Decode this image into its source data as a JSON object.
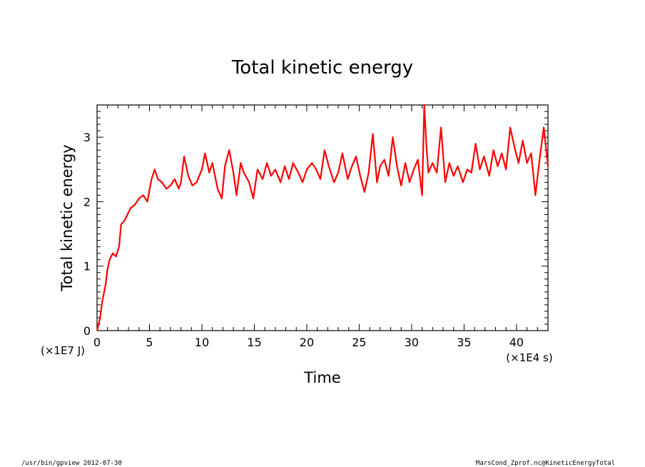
{
  "chart_data": {
    "type": "line",
    "title": "Total kinetic energy",
    "xlabel": "Time",
    "ylabel": "Total kinetic energy",
    "x_unit": "(×1E4 s)",
    "y_unit": "(×1E7 J)",
    "xlim": [
      0,
      43
    ],
    "ylim": [
      0,
      3.5
    ],
    "xticks": [
      0,
      5,
      10,
      15,
      20,
      25,
      30,
      35,
      40
    ],
    "xtick_labels": [
      "0",
      "5",
      "10",
      "15",
      "20",
      "25",
      "30",
      "35",
      "40"
    ],
    "yticks": [
      0,
      1,
      2,
      3
    ],
    "ytick_labels": [
      "0",
      "1",
      "2",
      "3"
    ],
    "grid": false,
    "line_color": "#ff0000",
    "series": [
      {
        "x": [
          0,
          0.3,
          0.5,
          0.8,
          1.0,
          1.2,
          1.5,
          1.8,
          2.1,
          2.3,
          2.6,
          2.9,
          3.2,
          3.6,
          4.0,
          4.4,
          4.8,
          5.2,
          5.5,
          5.8,
          6.2,
          6.6,
          7.0,
          7.4,
          7.8,
          8.0,
          8.3,
          8.7,
          9.1,
          9.5,
          10.0,
          10.3,
          10.7,
          11.0,
          11.5,
          11.9,
          12.2,
          12.6,
          13.0,
          13.3,
          13.7,
          14.0,
          14.5,
          14.9,
          15.3,
          15.8,
          16.2,
          16.6,
          17.0,
          17.5,
          17.9,
          18.3,
          18.7,
          19.2,
          19.6,
          20.0,
          20.5,
          20.9,
          21.3,
          21.7,
          22.1,
          22.6,
          23.0,
          23.4,
          23.9,
          24.3,
          24.7,
          25.1,
          25.5,
          25.9,
          26.3,
          26.7,
          27.0,
          27.4,
          27.8,
          28.2,
          28.6,
          29.0,
          29.4,
          29.8,
          30.2,
          30.6,
          31.0,
          31.2,
          31.4,
          31.6,
          32.0,
          32.4,
          32.8,
          33.2,
          33.6,
          34.0,
          34.4,
          34.9,
          35.3,
          35.7,
          36.1,
          36.5,
          36.9,
          37.4,
          37.8,
          38.2,
          38.6,
          39.0,
          39.4,
          39.8,
          40.2,
          40.6,
          41.0,
          41.4,
          41.8,
          42.2,
          42.6,
          43.0
        ],
        "y": [
          0,
          0.2,
          0.45,
          0.7,
          0.95,
          1.1,
          1.2,
          1.15,
          1.3,
          1.65,
          1.7,
          1.8,
          1.9,
          1.95,
          2.05,
          2.1,
          2.0,
          2.35,
          2.5,
          2.35,
          2.3,
          2.2,
          2.25,
          2.35,
          2.2,
          2.3,
          2.7,
          2.4,
          2.25,
          2.3,
          2.5,
          2.75,
          2.45,
          2.6,
          2.2,
          2.05,
          2.55,
          2.8,
          2.45,
          2.1,
          2.6,
          2.45,
          2.3,
          2.05,
          2.5,
          2.35,
          2.6,
          2.4,
          2.5,
          2.3,
          2.55,
          2.35,
          2.6,
          2.45,
          2.3,
          2.5,
          2.6,
          2.5,
          2.35,
          2.8,
          2.55,
          2.3,
          2.45,
          2.75,
          2.35,
          2.55,
          2.7,
          2.4,
          2.15,
          2.45,
          3.05,
          2.3,
          2.55,
          2.65,
          2.4,
          3.0,
          2.55,
          2.25,
          2.6,
          2.3,
          2.5,
          2.65,
          2.1,
          3.5,
          2.9,
          2.45,
          2.6,
          2.45,
          3.15,
          2.3,
          2.6,
          2.4,
          2.55,
          2.3,
          2.5,
          2.45,
          2.9,
          2.5,
          2.7,
          2.4,
          2.8,
          2.55,
          2.75,
          2.5,
          3.15,
          2.85,
          2.6,
          2.95,
          2.6,
          2.75,
          2.1,
          2.65,
          3.15,
          2.55
        ]
      }
    ]
  },
  "footer": {
    "left": "/usr/bin/gpview  2012-07-30",
    "right": "MarsCond_Zprof.nc@KineticEnergyTotal"
  }
}
